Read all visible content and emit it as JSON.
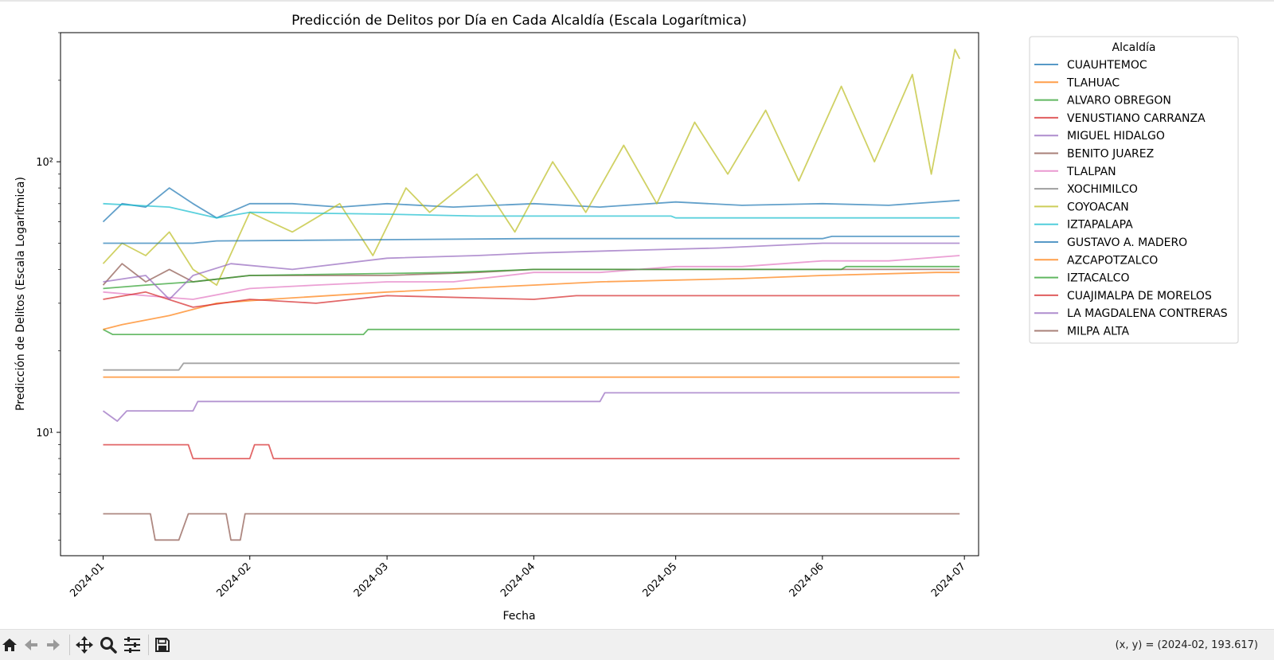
{
  "chart_data": {
    "type": "line",
    "title": "Predicción de Delitos por Día en Cada Alcaldía (Escala Logarítmica)",
    "xlabel": "Fecha",
    "ylabel": "Predicción de Delitos (Escala Logarítmica)",
    "yscale": "log",
    "ylim": [
      3.5,
      300
    ],
    "xlim": [
      "2023-12-23",
      "2024-07-04"
    ],
    "x_ticks": [
      "2024-01",
      "2024-02",
      "2024-03",
      "2024-04",
      "2024-05",
      "2024-06",
      "2024-07"
    ],
    "y_ticks": [
      10,
      100
    ],
    "y_tick_labels": [
      "10¹",
      "10²"
    ],
    "grid": false,
    "legend_title": "Alcaldía",
    "legend_position": "outside right",
    "x_start": "2024-01-01",
    "x_end": "2024-06-30",
    "series": [
      {
        "name": "CUAUHTEMOC",
        "color": "#1f77b4",
        "points": [
          [
            "2024-01-01",
            60
          ],
          [
            "2024-01-05",
            70
          ],
          [
            "2024-01-10",
            68
          ],
          [
            "2024-01-15",
            80
          ],
          [
            "2024-01-20",
            70
          ],
          [
            "2024-01-25",
            62
          ],
          [
            "2024-02-01",
            70
          ],
          [
            "2024-02-10",
            70
          ],
          [
            "2024-02-20",
            68
          ],
          [
            "2024-03-01",
            70
          ],
          [
            "2024-03-15",
            68
          ],
          [
            "2024-04-01",
            70
          ],
          [
            "2024-04-15",
            68
          ],
          [
            "2024-05-01",
            71
          ],
          [
            "2024-05-15",
            69
          ],
          [
            "2024-06-01",
            70
          ],
          [
            "2024-06-15",
            69
          ],
          [
            "2024-06-30",
            72
          ]
        ]
      },
      {
        "name": "TLAHUAC",
        "color": "#ff7f0e",
        "points": [
          [
            "2024-01-01",
            16
          ],
          [
            "2024-06-30",
            16
          ]
        ]
      },
      {
        "name": "ALVARO OBREGON",
        "color": "#2ca02c",
        "points": [
          [
            "2024-01-01",
            24
          ],
          [
            "2024-01-03",
            23
          ],
          [
            "2024-02-25",
            23
          ],
          [
            "2024-02-26",
            24
          ],
          [
            "2024-06-30",
            24
          ]
        ]
      },
      {
        "name": "VENUSTIANO CARRANZA",
        "color": "#d62728",
        "points": [
          [
            "2024-01-01",
            9
          ],
          [
            "2024-01-19",
            9
          ],
          [
            "2024-01-20",
            8
          ],
          [
            "2024-02-01",
            8
          ],
          [
            "2024-02-02",
            9
          ],
          [
            "2024-02-05",
            9
          ],
          [
            "2024-02-06",
            8
          ],
          [
            "2024-06-30",
            8
          ]
        ]
      },
      {
        "name": "MIGUEL HIDALGO",
        "color": "#9467bd",
        "points": [
          [
            "2024-01-01",
            12
          ],
          [
            "2024-01-04",
            11
          ],
          [
            "2024-01-06",
            12
          ],
          [
            "2024-01-20",
            12
          ],
          [
            "2024-01-21",
            13
          ],
          [
            "2024-04-15",
            13
          ],
          [
            "2024-04-16",
            14
          ],
          [
            "2024-06-30",
            14
          ]
        ]
      },
      {
        "name": "BENITO JUAREZ",
        "color": "#8c564b",
        "points": [
          [
            "2024-01-01",
            35
          ],
          [
            "2024-01-05",
            42
          ],
          [
            "2024-01-10",
            36
          ],
          [
            "2024-01-15",
            40
          ],
          [
            "2024-01-20",
            36
          ],
          [
            "2024-02-01",
            38
          ],
          [
            "2024-03-01",
            38
          ],
          [
            "2024-03-20",
            39
          ],
          [
            "2024-04-01",
            40
          ],
          [
            "2024-06-30",
            40
          ]
        ]
      },
      {
        "name": "TLALPAN",
        "color": "#e377c2",
        "points": [
          [
            "2024-01-01",
            33
          ],
          [
            "2024-01-10",
            32
          ],
          [
            "2024-01-20",
            31
          ],
          [
            "2024-02-01",
            34
          ],
          [
            "2024-02-15",
            35
          ],
          [
            "2024-03-01",
            36
          ],
          [
            "2024-03-15",
            36
          ],
          [
            "2024-04-01",
            39
          ],
          [
            "2024-04-15",
            39
          ],
          [
            "2024-05-01",
            41
          ],
          [
            "2024-05-15",
            41
          ],
          [
            "2024-06-01",
            43
          ],
          [
            "2024-06-15",
            43
          ],
          [
            "2024-06-30",
            45
          ]
        ]
      },
      {
        "name": "XOCHIMILCO",
        "color": "#7f7f7f",
        "points": [
          [
            "2024-01-01",
            17
          ],
          [
            "2024-01-17",
            17
          ],
          [
            "2024-01-18",
            18
          ],
          [
            "2024-06-30",
            18
          ]
        ]
      },
      {
        "name": "COYOACAN",
        "color": "#bcbd22",
        "points": [
          [
            "2024-01-01",
            42
          ],
          [
            "2024-01-05",
            50
          ],
          [
            "2024-01-10",
            45
          ],
          [
            "2024-01-15",
            55
          ],
          [
            "2024-01-20",
            40
          ],
          [
            "2024-01-25",
            35
          ],
          [
            "2024-02-01",
            65
          ],
          [
            "2024-02-10",
            55
          ],
          [
            "2024-02-20",
            70
          ],
          [
            "2024-02-27",
            45
          ],
          [
            "2024-03-05",
            80
          ],
          [
            "2024-03-10",
            65
          ],
          [
            "2024-03-20",
            90
          ],
          [
            "2024-03-28",
            55
          ],
          [
            "2024-04-05",
            100
          ],
          [
            "2024-04-12",
            65
          ],
          [
            "2024-04-20",
            115
          ],
          [
            "2024-04-27",
            70
          ],
          [
            "2024-05-05",
            140
          ],
          [
            "2024-05-12",
            90
          ],
          [
            "2024-05-20",
            155
          ],
          [
            "2024-05-27",
            85
          ],
          [
            "2024-06-05",
            190
          ],
          [
            "2024-06-12",
            100
          ],
          [
            "2024-06-20",
            210
          ],
          [
            "2024-06-24",
            90
          ],
          [
            "2024-06-29",
            260
          ],
          [
            "2024-06-30",
            240
          ]
        ]
      },
      {
        "name": "IZTAPALAPA",
        "color": "#17becf",
        "points": [
          [
            "2024-01-01",
            70
          ],
          [
            "2024-01-15",
            68
          ],
          [
            "2024-01-25",
            62
          ],
          [
            "2024-02-01",
            65
          ],
          [
            "2024-03-01",
            64
          ],
          [
            "2024-03-20",
            63
          ],
          [
            "2024-04-30",
            63
          ],
          [
            "2024-05-01",
            62
          ],
          [
            "2024-06-30",
            62
          ]
        ]
      },
      {
        "name": "GUSTAVO A. MADERO",
        "color": "#1f77b4",
        "points": [
          [
            "2024-01-01",
            50
          ],
          [
            "2024-01-20",
            50
          ],
          [
            "2024-01-25",
            51
          ],
          [
            "2024-04-01",
            52
          ],
          [
            "2024-06-01",
            52
          ],
          [
            "2024-06-03",
            53
          ],
          [
            "2024-06-30",
            53
          ]
        ]
      },
      {
        "name": "AZCAPOTZALCO",
        "color": "#ff7f0e",
        "points": [
          [
            "2024-01-01",
            24
          ],
          [
            "2024-01-05",
            25
          ],
          [
            "2024-01-15",
            27
          ],
          [
            "2024-01-25",
            30
          ],
          [
            "2024-02-05",
            31
          ],
          [
            "2024-03-01",
            33
          ],
          [
            "2024-04-01",
            35
          ],
          [
            "2024-04-15",
            36
          ],
          [
            "2024-05-15",
            37
          ],
          [
            "2024-06-01",
            38
          ],
          [
            "2024-06-25",
            39
          ],
          [
            "2024-06-30",
            39
          ]
        ]
      },
      {
        "name": "IZTACALCO",
        "color": "#2ca02c",
        "points": [
          [
            "2024-01-01",
            34
          ],
          [
            "2024-01-10",
            35
          ],
          [
            "2024-01-20",
            36
          ],
          [
            "2024-02-01",
            38
          ],
          [
            "2024-03-15",
            39
          ],
          [
            "2024-04-01",
            40
          ],
          [
            "2024-06-05",
            40
          ],
          [
            "2024-06-06",
            41
          ],
          [
            "2024-06-30",
            41
          ]
        ]
      },
      {
        "name": "CUAJIMALPA DE MORELOS",
        "color": "#d62728",
        "points": [
          [
            "2024-01-01",
            31
          ],
          [
            "2024-01-10",
            33
          ],
          [
            "2024-01-20",
            29
          ],
          [
            "2024-02-01",
            31
          ],
          [
            "2024-02-15",
            30
          ],
          [
            "2024-03-01",
            32
          ],
          [
            "2024-04-01",
            31
          ],
          [
            "2024-04-10",
            32
          ],
          [
            "2024-06-30",
            32
          ]
        ]
      },
      {
        "name": "LA MAGDALENA CONTRERAS",
        "color": "#9467bd",
        "points": [
          [
            "2024-01-01",
            36
          ],
          [
            "2024-01-10",
            38
          ],
          [
            "2024-01-15",
            31
          ],
          [
            "2024-01-20",
            38
          ],
          [
            "2024-01-28",
            42
          ],
          [
            "2024-02-10",
            40
          ],
          [
            "2024-03-01",
            44
          ],
          [
            "2024-03-20",
            45
          ],
          [
            "2024-04-01",
            46
          ],
          [
            "2024-04-20",
            47
          ],
          [
            "2024-05-10",
            48
          ],
          [
            "2024-06-01",
            50
          ],
          [
            "2024-06-30",
            50
          ]
        ]
      },
      {
        "name": "MILPA ALTA",
        "color": "#8c564b",
        "points": [
          [
            "2024-01-01",
            5
          ],
          [
            "2024-01-11",
            5
          ],
          [
            "2024-01-12",
            4
          ],
          [
            "2024-01-17",
            4
          ],
          [
            "2024-01-19",
            5
          ],
          [
            "2024-01-27",
            5
          ],
          [
            "2024-01-28",
            4
          ],
          [
            "2024-01-30",
            4
          ],
          [
            "2024-01-31",
            5
          ],
          [
            "2024-06-30",
            5
          ]
        ]
      }
    ]
  },
  "status": {
    "coords": "(x, y) = (2024-02, 193.617)"
  },
  "toolbar": {
    "buttons": [
      "home-icon",
      "back-icon",
      "forward-icon",
      "pan-icon",
      "zoom-icon",
      "configure-icon",
      "save-icon"
    ]
  }
}
